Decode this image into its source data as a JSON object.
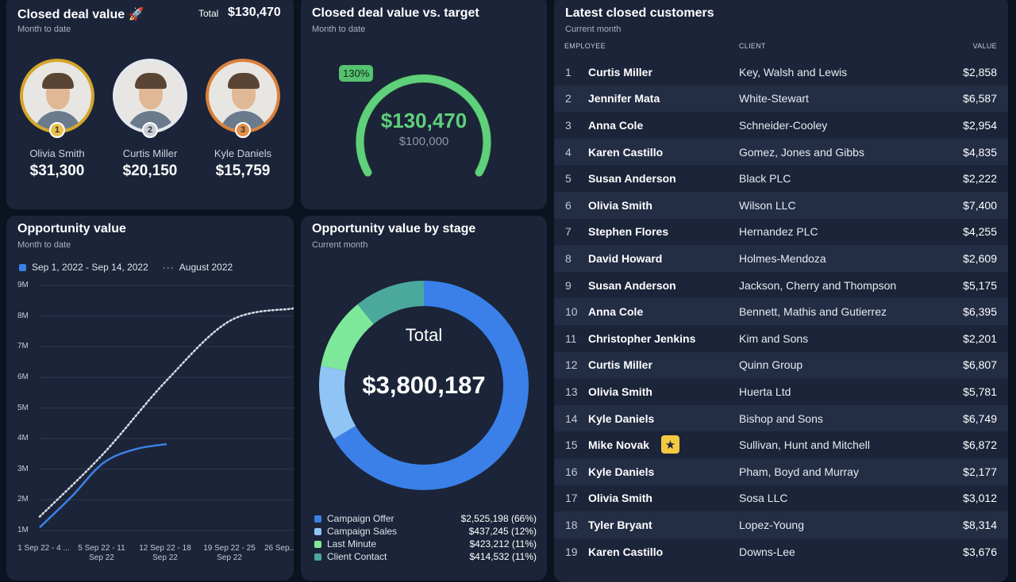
{
  "closed_deal_value": {
    "title": "Closed deal value 🚀",
    "subtitle": "Month to date",
    "total_label": "Total",
    "total_value": "$130,470",
    "top_employees": [
      {
        "rank": "1",
        "name": "Olivia Smith",
        "value": "$31,300",
        "ring_color": "#d4a52a",
        "medal_color": "#e8c14a"
      },
      {
        "rank": "2",
        "name": "Curtis Miller",
        "value": "$20,150",
        "ring_color": "#e4e7ec",
        "medal_color": "#c9ced6"
      },
      {
        "rank": "3",
        "name": "Kyle Daniels",
        "value": "$15,759",
        "ring_color": "#d9803a",
        "medal_color": "#e48f4a"
      }
    ]
  },
  "deal_vs_target": {
    "title": "Closed deal value vs. target",
    "subtitle": "Month to date",
    "percent_label": "130%",
    "value": "$130,470",
    "target": "$100,000",
    "progress": 1.3,
    "accent": "#5fd07c"
  },
  "opportunity_value": {
    "title": "Opportunity value",
    "subtitle": "Month to date",
    "legend_current": "Sep 1, 2022 - Sep 14, 2022",
    "legend_previous": "August 2022",
    "chart_data": {
      "type": "line",
      "ylim": [
        1000000,
        9000000
      ],
      "y_ticks": [
        "9M",
        "8M",
        "7M",
        "6M",
        "5M",
        "4M",
        "3M",
        "2M",
        "1M"
      ],
      "x_ticks": [
        "1 Sep 22 - 4 ...",
        "5 Sep 22 - 11 Sep 22",
        "12 Sep 22 - 18 Sep 22",
        "19 Sep 22 - 25 Sep 22",
        "26 Sep..."
      ],
      "series": [
        {
          "name": "Sep 1, 2022 - Sep 14, 2022",
          "color": "#3b82e6",
          "style": "solid",
          "x": [
            0,
            0.5,
            1,
            1.5,
            2
          ],
          "values": [
            1100000,
            2100000,
            3200000,
            3650000,
            3820000
          ]
        },
        {
          "name": "August 2022",
          "color": "#d6dbe4",
          "style": "dotted",
          "x": [
            0,
            1,
            2,
            3,
            4
          ],
          "values": [
            1450000,
            3500000,
            5900000,
            7850000,
            8250000
          ]
        }
      ]
    }
  },
  "opportunity_by_stage": {
    "title": "Opportunity value by stage",
    "subtitle": "Current month",
    "center_label": "Total",
    "center_value": "$3,800,187",
    "chart_data": {
      "type": "pie",
      "labels": [
        "Campaign Offer",
        "Campaign Sales",
        "Last Minute",
        "Client Contact"
      ],
      "values": [
        2525198,
        437245,
        423212,
        414532
      ],
      "display": [
        "$2,525,198 (66%)",
        "$437,245 (12%)",
        "$423,212 (11%)",
        "$414,532 (11%)"
      ],
      "colors": [
        "#3a80e8",
        "#8fc4f5",
        "#7ee89a",
        "#4aa89c"
      ]
    }
  },
  "latest_customers": {
    "title": "Latest closed customers",
    "subtitle": "Current month",
    "headers": {
      "employee": "EMPLOYEE",
      "client": "CLIENT",
      "value": "VALUE"
    },
    "rows": [
      {
        "n": "1",
        "employee": "Curtis Miller",
        "client": "Key, Walsh and Lewis",
        "value": "$2,858"
      },
      {
        "n": "2",
        "employee": "Jennifer Mata",
        "client": "White-Stewart",
        "value": "$6,587"
      },
      {
        "n": "3",
        "employee": "Anna Cole",
        "client": "Schneider-Cooley",
        "value": "$2,954"
      },
      {
        "n": "4",
        "employee": "Karen Castillo",
        "client": "Gomez, Jones and Gibbs",
        "value": "$4,835"
      },
      {
        "n": "5",
        "employee": "Susan Anderson",
        "client": "Black PLC",
        "value": "$2,222"
      },
      {
        "n": "6",
        "employee": "Olivia Smith",
        "client": "Wilson LLC",
        "value": "$7,400"
      },
      {
        "n": "7",
        "employee": "Stephen Flores",
        "client": "Hernandez PLC",
        "value": "$4,255"
      },
      {
        "n": "8",
        "employee": "David Howard",
        "client": "Holmes-Mendoza",
        "value": "$2,609"
      },
      {
        "n": "9",
        "employee": "Susan Anderson",
        "client": "Jackson, Cherry and Thompson",
        "value": "$5,175"
      },
      {
        "n": "10",
        "employee": "Anna Cole",
        "client": "Bennett, Mathis and Gutierrez",
        "value": "$6,395"
      },
      {
        "n": "11",
        "employee": "Christopher Jenkins",
        "client": "Kim and Sons",
        "value": "$2,201"
      },
      {
        "n": "12",
        "employee": "Curtis Miller",
        "client": "Quinn Group",
        "value": "$6,807"
      },
      {
        "n": "13",
        "employee": "Olivia Smith",
        "client": "Huerta Ltd",
        "value": "$5,781"
      },
      {
        "n": "14",
        "employee": "Kyle Daniels",
        "client": "Bishop and Sons",
        "value": "$6,749"
      },
      {
        "n": "15",
        "employee": "Mike Novak",
        "client": "Sullivan, Hunt and Mitchell",
        "value": "$6,872",
        "star": true
      },
      {
        "n": "16",
        "employee": "Kyle Daniels",
        "client": "Pham, Boyd and Murray",
        "value": "$2,177"
      },
      {
        "n": "17",
        "employee": "Olivia Smith",
        "client": "Sosa LLC",
        "value": "$3,012"
      },
      {
        "n": "18",
        "employee": "Tyler Bryant",
        "client": "Lopez-Young",
        "value": "$8,314"
      },
      {
        "n": "19",
        "employee": "Karen Castillo",
        "client": "Downs-Lee",
        "value": "$3,676"
      }
    ]
  }
}
